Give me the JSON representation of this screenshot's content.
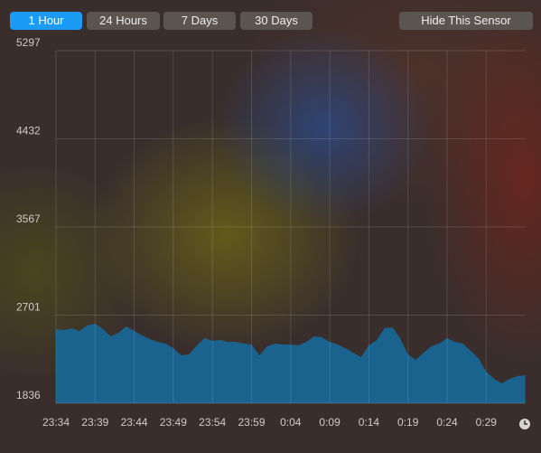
{
  "toolbar": {
    "ranges": [
      "1 Hour",
      "24 Hours",
      "7 Days",
      "30 Days"
    ],
    "active": 0,
    "hide_button": "Hide This Sensor"
  },
  "chart_data": {
    "type": "area",
    "color": "#1a638e",
    "x": [
      "23:34",
      "23:35",
      "23:36",
      "23:37",
      "23:38",
      "23:39",
      "23:40",
      "23:41",
      "23:42",
      "23:43",
      "23:44",
      "23:45",
      "23:46",
      "23:47",
      "23:48",
      "23:49",
      "23:50",
      "23:51",
      "23:52",
      "23:53",
      "23:54",
      "23:55",
      "23:56",
      "23:57",
      "23:58",
      "23:59",
      "0:00",
      "0:01",
      "0:02",
      "0:03",
      "0:04",
      "0:05",
      "0:06",
      "0:07",
      "0:08",
      "0:09",
      "0:10",
      "0:11",
      "0:12",
      "0:13",
      "0:14",
      "0:15",
      "0:16",
      "0:17",
      "0:18",
      "0:19",
      "0:20",
      "0:21",
      "0:22",
      "0:23",
      "0:24",
      "0:25",
      "0:26",
      "0:27",
      "0:28",
      "0:29",
      "0:30",
      "0:31",
      "0:32",
      "0:33",
      "0:34"
    ],
    "values": [
      2564,
      2555,
      2573,
      2546,
      2599,
      2617,
      2564,
      2493,
      2528,
      2590,
      2546,
      2502,
      2466,
      2439,
      2422,
      2377,
      2306,
      2315,
      2404,
      2475,
      2448,
      2457,
      2439,
      2439,
      2422,
      2413,
      2306,
      2395,
      2422,
      2413,
      2413,
      2404,
      2439,
      2493,
      2484,
      2439,
      2413,
      2377,
      2333,
      2289,
      2404,
      2457,
      2573,
      2581,
      2475,
      2315,
      2262,
      2333,
      2395,
      2422,
      2475,
      2439,
      2422,
      2351,
      2280,
      2147,
      2076,
      2031,
      2076,
      2102,
      2111
    ],
    "xticks": [
      "23:34",
      "23:39",
      "23:44",
      "23:49",
      "23:54",
      "23:59",
      "0:04",
      "0:09",
      "0:14",
      "0:19",
      "0:24",
      "0:29"
    ],
    "ylim": [
      1836,
      5297
    ],
    "yticks": [
      1836,
      2701,
      3567,
      4432,
      5297
    ],
    "grid": true
  }
}
